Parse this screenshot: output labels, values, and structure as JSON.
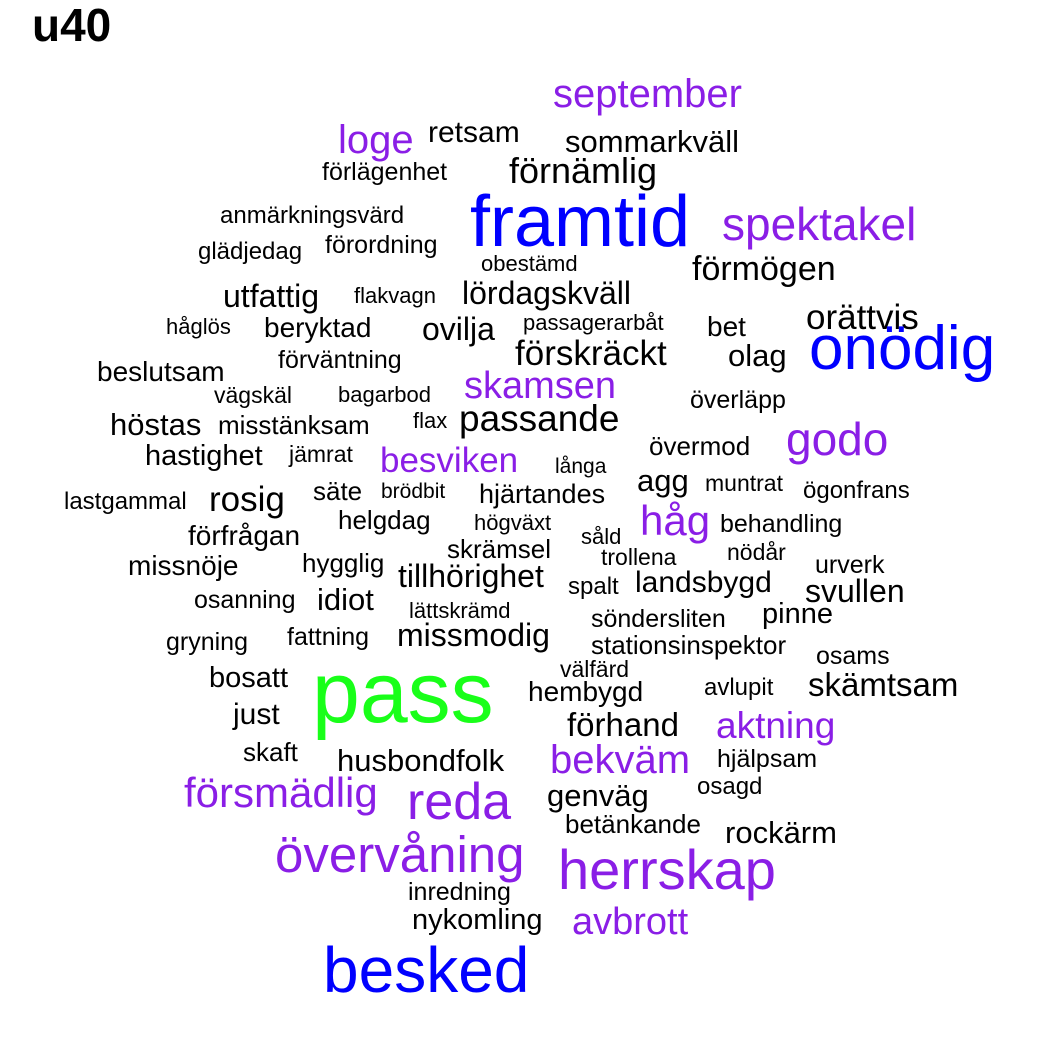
{
  "title": "u40",
  "colors": {
    "black": "#000000",
    "purple": "#8a1ee6",
    "blue": "#0000ff",
    "green": "#19ff19"
  },
  "words": [
    "september",
    "loge",
    "retsam",
    "sommarkväll",
    "förlägenhet",
    "förnämlig",
    "anmärkningsvärd",
    "framtid",
    "spektakel",
    "glädjedag",
    "förordning",
    "obestämd",
    "förmögen",
    "utfattig",
    "flakvagn",
    "lördagskväll",
    "orättvis",
    "håglös",
    "beryktad",
    "ovilja",
    "passagerarbåt",
    "bet",
    "onödig",
    "förväntning",
    "förskräckt",
    "olag",
    "beslutsam",
    "skamsen",
    "vägskäl",
    "bagarbod",
    "överläpp",
    "höstas",
    "misstänksam",
    "flax",
    "passande",
    "godo",
    "övermod",
    "hastighet",
    "jämrat",
    "besviken",
    "långa",
    "agg",
    "muntrat",
    "ögonfrans",
    "lastgammal",
    "rosig",
    "säte",
    "brödbit",
    "hjärtandes",
    "helgdag",
    "högväxt",
    "håg",
    "behandling",
    "förfrågan",
    "såld",
    "skrämsel",
    "trollena",
    "nödår",
    "missnöje",
    "hygglig",
    "urverk",
    "tillhörighet",
    "landsbygd",
    "svullen",
    "spalt",
    "osanning",
    "idiot",
    "lättskrämd",
    "söndersliten",
    "pinne",
    "gryning",
    "fattning",
    "missmodig",
    "stationsinspektor",
    "osams",
    "välfärd",
    "pass",
    "bosatt",
    "hembygd",
    "avlupit",
    "skämtsam",
    "just",
    "förhand",
    "aktning",
    "skaft",
    "husbondfolk",
    "bekväm",
    "hjälpsam",
    "osagd",
    "försmädlig",
    "reda",
    "genväg",
    "betänkande",
    "rockärm",
    "övervåning",
    "herrskap",
    "inredning",
    "nykomling",
    "avbrott",
    "besked"
  ]
}
